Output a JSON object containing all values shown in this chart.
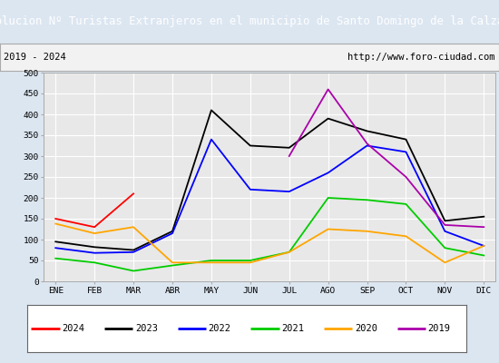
{
  "title": "Evolucion Nº Turistas Extranjeros en el municipio de Santo Domingo de la Calzada",
  "subtitle_left": "2019 - 2024",
  "subtitle_right": "http://www.foro-ciudad.com",
  "months": [
    "ENE",
    "FEB",
    "MAR",
    "ABR",
    "MAY",
    "JUN",
    "JUL",
    "AGO",
    "SEP",
    "OCT",
    "NOV",
    "DIC"
  ],
  "series": {
    "2024": {
      "color": "#ff0000",
      "data": [
        150,
        130,
        210,
        null,
        null,
        null,
        null,
        null,
        null,
        null,
        null,
        null
      ]
    },
    "2023": {
      "color": "#000000",
      "data": [
        95,
        82,
        75,
        120,
        410,
        325,
        320,
        390,
        360,
        340,
        145,
        155
      ]
    },
    "2022": {
      "color": "#0000ff",
      "data": [
        80,
        68,
        70,
        115,
        340,
        220,
        215,
        260,
        325,
        310,
        120,
        85
      ]
    },
    "2021": {
      "color": "#00cc00",
      "data": [
        55,
        45,
        25,
        38,
        50,
        50,
        70,
        200,
        195,
        185,
        80,
        62
      ]
    },
    "2020": {
      "color": "#ffa500",
      "data": [
        138,
        115,
        130,
        45,
        45,
        45,
        70,
        125,
        120,
        108,
        45,
        85
      ]
    },
    "2019": {
      "color": "#aa00aa",
      "data": [
        null,
        null,
        null,
        null,
        null,
        null,
        300,
        460,
        330,
        250,
        135,
        130
      ]
    }
  },
  "ylim": [
    0,
    500
  ],
  "yticks": [
    0,
    50,
    100,
    150,
    200,
    250,
    300,
    350,
    400,
    450,
    500
  ],
  "title_bg": "#5b9bd5",
  "title_color": "#ffffff",
  "plot_bg": "#e8e8e8",
  "grid_color": "#ffffff",
  "outer_bg": "#dce6f1"
}
